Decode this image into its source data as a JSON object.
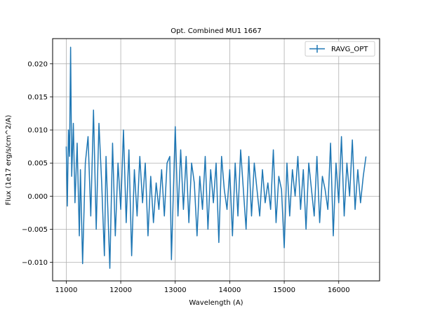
{
  "chart_data": {
    "type": "line",
    "title": "Opt. Combined MU1 1667",
    "xlabel": "Wavelength (A)",
    "ylabel": "Flux (1e17 erg/s/cm^2/A)",
    "xlim": [
      10750,
      16750
    ],
    "ylim": [
      -0.0128,
      0.0238
    ],
    "xticks": [
      11000,
      12000,
      13000,
      14000,
      15000,
      16000
    ],
    "xtick_labels": [
      "11000",
      "12000",
      "13000",
      "14000",
      "15000",
      "16000"
    ],
    "yticks": [
      -0.01,
      -0.005,
      0.0,
      0.005,
      0.01,
      0.015,
      0.02
    ],
    "ytick_labels": [
      "−0.010",
      "−0.005",
      "0.000",
      "0.005",
      "0.010",
      "0.015",
      "0.020"
    ],
    "grid": true,
    "legend_position": "top-right",
    "series_color": "#1f77b4",
    "series": [
      {
        "name": "RAVG_OPT",
        "x": [
          11000,
          11020,
          11040,
          11060,
          11080,
          11100,
          11130,
          11160,
          11200,
          11240,
          11260,
          11300,
          11350,
          11400,
          11450,
          11500,
          11550,
          11600,
          11650,
          11700,
          11730,
          11800,
          11850,
          11900,
          11950,
          12000,
          12050,
          12100,
          12150,
          12200,
          12250,
          12300,
          12350,
          12400,
          12450,
          12500,
          12550,
          12600,
          12650,
          12700,
          12750,
          12800,
          12850,
          12900,
          12930,
          13000,
          13050,
          13100,
          13150,
          13200,
          13250,
          13300,
          13350,
          13400,
          13450,
          13500,
          13550,
          13600,
          13650,
          13700,
          13750,
          13800,
          13850,
          13900,
          13950,
          14000,
          14050,
          14100,
          14150,
          14200,
          14250,
          14300,
          14350,
          14400,
          14450,
          14500,
          14550,
          14600,
          14650,
          14700,
          14750,
          14800,
          14850,
          14900,
          14950,
          15000,
          15050,
          15100,
          15150,
          15200,
          15250,
          15300,
          15350,
          15400,
          15450,
          15500,
          15550,
          15600,
          15650,
          15700,
          15750,
          15800,
          15850,
          15900,
          15950,
          16000,
          16050,
          16100,
          16150,
          16200,
          16250,
          16300,
          16350,
          16400,
          16450,
          16500
        ],
        "y": [
          0.0075,
          -0.0015,
          0.01,
          0.006,
          0.0225,
          0.003,
          0.011,
          -0.001,
          0.008,
          -0.006,
          0.004,
          -0.0102,
          0.005,
          0.009,
          -0.003,
          0.013,
          -0.005,
          0.011,
          0.002,
          -0.009,
          0.006,
          -0.0109,
          0.008,
          -0.006,
          0.005,
          -0.002,
          0.01,
          -0.004,
          0.007,
          -0.009,
          0.004,
          -0.003,
          0.006,
          -0.001,
          0.005,
          -0.006,
          0.003,
          -0.004,
          0.002,
          -0.002,
          0.004,
          -0.003,
          0.005,
          0.006,
          -0.0096,
          0.0105,
          -0.003,
          0.007,
          -0.002,
          0.006,
          -0.004,
          0.005,
          0.002,
          -0.006,
          0.003,
          -0.002,
          0.006,
          -0.005,
          0.004,
          -0.001,
          0.005,
          -0.007,
          0.006,
          0.001,
          -0.002,
          0.004,
          -0.006,
          0.005,
          -0.003,
          0.007,
          0.001,
          -0.005,
          0.006,
          -0.003,
          0.005,
          0.001,
          -0.003,
          0.004,
          -0.001,
          0.002,
          -0.002,
          0.007,
          -0.004,
          0.003,
          0.001,
          -0.0078,
          0.005,
          -0.003,
          0.004,
          0.0,
          0.006,
          -0.002,
          0.004,
          -0.005,
          0.005,
          0.001,
          -0.003,
          0.006,
          -0.004,
          0.003,
          0.001,
          -0.002,
          0.008,
          -0.006,
          0.005,
          -0.001,
          0.009,
          -0.003,
          0.005,
          0.0,
          0.0085,
          -0.002,
          0.004,
          -0.001,
          0.003,
          0.006
        ]
      }
    ]
  }
}
